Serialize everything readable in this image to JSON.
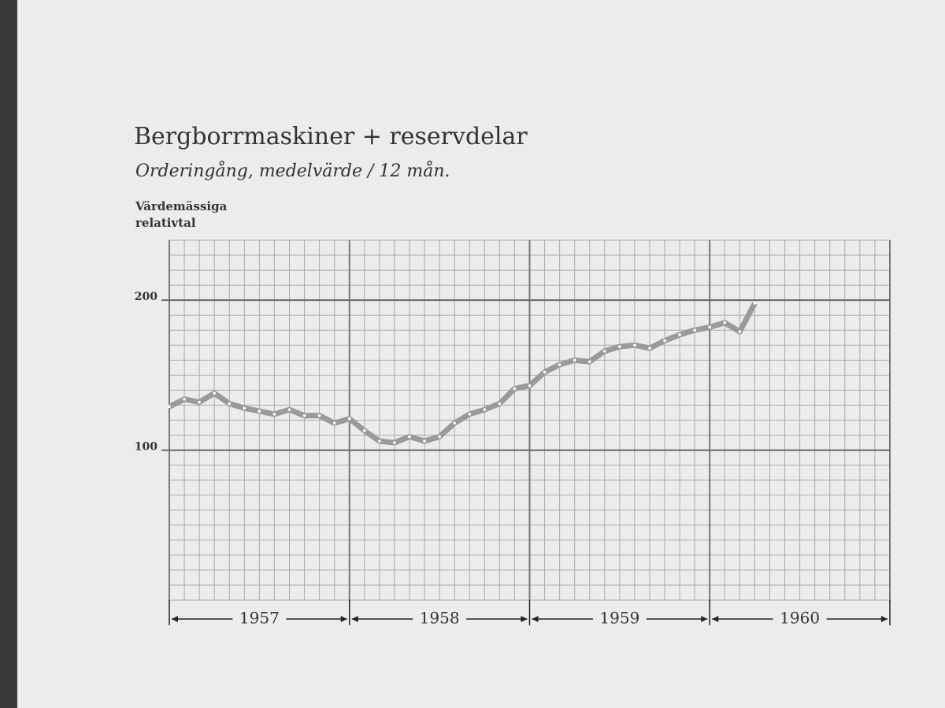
{
  "chart_data": {
    "type": "line",
    "title": "Bergborrmaskiner + reservdelar",
    "subtitle": "Orderingång, medelvärde / 12 mån.",
    "ylabel_lines": [
      "Värdemässiga",
      "relativtal"
    ],
    "year_labels": [
      "1957",
      "1958",
      "1959",
      "1960"
    ],
    "categories": [
      null,
      null,
      null,
      null,
      null,
      null,
      null,
      null,
      null,
      null,
      null,
      null,
      null,
      null,
      null,
      null,
      null,
      null,
      null,
      null,
      null,
      null,
      null,
      null,
      null,
      null,
      null,
      null,
      null,
      null,
      null,
      null,
      null,
      null,
      null,
      null,
      null,
      null,
      null,
      null,
      null,
      null,
      null,
      null,
      null,
      null,
      null,
      null,
      null
    ],
    "values": [
      129,
      134,
      132,
      138,
      131,
      128,
      126,
      124,
      127,
      123,
      123,
      118,
      121,
      113,
      106,
      105,
      109,
      106,
      109,
      118,
      124,
      127,
      131,
      141,
      143,
      152,
      157,
      160,
      159,
      166,
      169,
      170,
      168,
      173,
      177,
      180,
      182,
      185,
      179,
      198,
      null,
      null,
      null,
      null,
      null,
      null,
      null,
      null,
      null
    ],
    "color": "#9a9a9a",
    "ylim": [
      0,
      240
    ],
    "yticks": [
      100,
      200
    ],
    "grid": true,
    "grid_step": 10
  }
}
